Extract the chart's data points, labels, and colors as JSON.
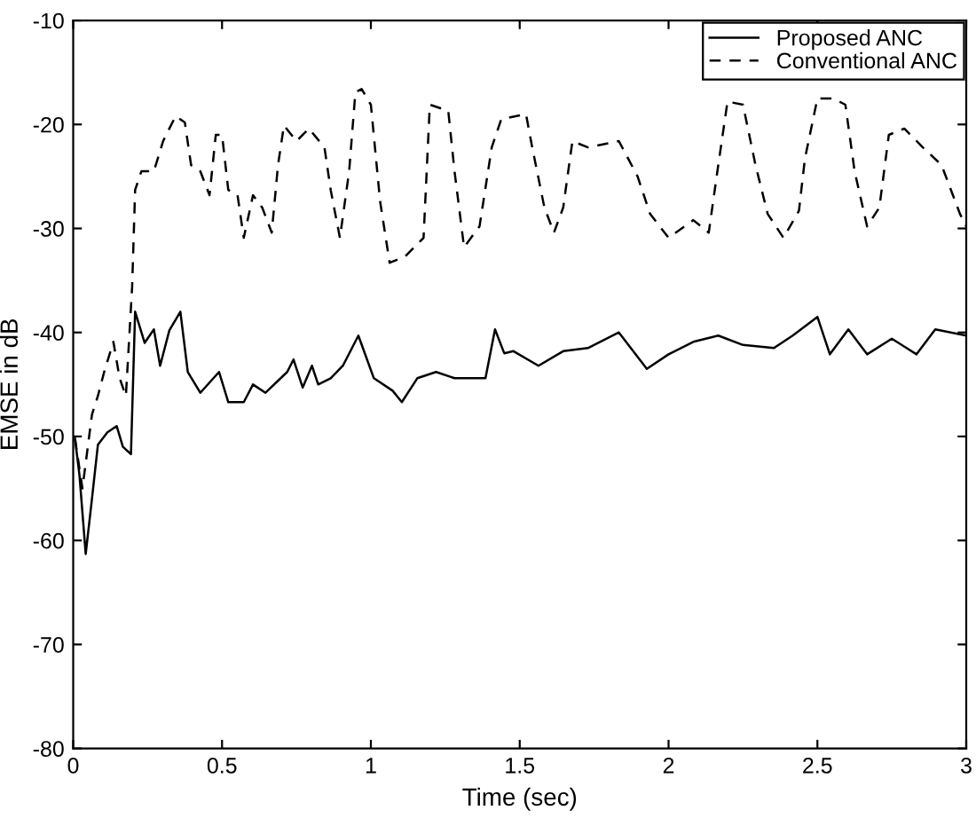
{
  "chart_data": {
    "type": "line",
    "xlabel": "Time (sec)",
    "ylabel": "EMSE in dB",
    "xlim": [
      0,
      3
    ],
    "ylim": [
      -80,
      -10
    ],
    "xticks": [
      0,
      0.5,
      1,
      1.5,
      2,
      2.5,
      3
    ],
    "yticks": [
      -80,
      -70,
      -60,
      -50,
      -40,
      -30,
      -20,
      -10
    ],
    "grid": false,
    "legend": "top right",
    "marker": "none",
    "series": [
      {
        "name": "Proposed ANC",
        "color": "#000000",
        "line_style": "solid",
        "x": [
          0.006,
          0.021,
          0.042,
          0.063,
          0.083,
          0.115,
          0.146,
          0.167,
          0.194,
          0.208,
          0.24,
          0.271,
          0.292,
          0.323,
          0.36,
          0.385,
          0.427,
          0.49,
          0.521,
          0.573,
          0.604,
          0.646,
          0.719,
          0.74,
          0.771,
          0.802,
          0.823,
          0.865,
          0.906,
          0.958,
          1.01,
          1.073,
          1.104,
          1.156,
          1.219,
          1.281,
          1.323,
          1.385,
          1.417,
          1.448,
          1.479,
          1.563,
          1.646,
          1.729,
          1.833,
          1.927,
          2.0,
          2.083,
          2.167,
          2.25,
          2.354,
          2.417,
          2.5,
          2.542,
          2.604,
          2.667,
          2.75,
          2.833,
          2.896,
          3.0
        ],
        "values": [
          -50.2,
          -53.7,
          -61.3,
          -56,
          -50.8,
          -49.6,
          -49,
          -51,
          -51.7,
          -38,
          -41,
          -39.7,
          -43.2,
          -39.8,
          -38,
          -43.8,
          -45.8,
          -43.8,
          -46.7,
          -46.7,
          -45,
          -45.8,
          -43.8,
          -42.6,
          -45.3,
          -43.2,
          -45,
          -44.4,
          -43.2,
          -40.3,
          -44.4,
          -45.6,
          -46.7,
          -44.4,
          -43.8,
          -44.4,
          -44.4,
          -44.4,
          -39.7,
          -42,
          -41.8,
          -43.2,
          -41.8,
          -41.5,
          -40,
          -43.5,
          -42.1,
          -40.9,
          -40.3,
          -41.2,
          -41.5,
          -40.3,
          -38.5,
          -42.1,
          -39.7,
          -42.1,
          -40.6,
          -42.1,
          -39.7,
          -40.3
        ]
      },
      {
        "name": "Conventional ANC",
        "color": "#000000",
        "line_style": "dashed",
        "x": [
          0.006,
          0.031,
          0.063,
          0.083,
          0.104,
          0.135,
          0.156,
          0.177,
          0.198,
          0.208,
          0.229,
          0.271,
          0.302,
          0.344,
          0.375,
          0.396,
          0.427,
          0.458,
          0.479,
          0.5,
          0.521,
          0.552,
          0.573,
          0.604,
          0.635,
          0.667,
          0.688,
          0.708,
          0.75,
          0.792,
          0.844,
          0.865,
          0.896,
          0.927,
          0.948,
          0.969,
          1.0,
          1.031,
          1.063,
          1.115,
          1.177,
          1.198,
          1.26,
          1.281,
          1.313,
          1.365,
          1.406,
          1.438,
          1.521,
          1.542,
          1.583,
          1.615,
          1.646,
          1.677,
          1.729,
          1.833,
          1.896,
          1.938,
          2.0,
          2.083,
          2.135,
          2.167,
          2.198,
          2.25,
          2.292,
          2.333,
          2.386,
          2.438,
          2.458,
          2.5,
          2.552,
          2.594,
          2.625,
          2.667,
          2.708,
          2.74,
          2.792,
          2.854,
          2.917,
          2.979,
          3.0
        ],
        "values": [
          -50.2,
          -55,
          -47.9,
          -46.1,
          -43.8,
          -40.9,
          -44.4,
          -46.1,
          -35.6,
          -26.3,
          -24.5,
          -24.5,
          -21.6,
          -19.2,
          -19.8,
          -23.9,
          -24.5,
          -26.8,
          -21,
          -21,
          -26.3,
          -26.8,
          -30.9,
          -26.8,
          -28,
          -30.4,
          -23.9,
          -20.1,
          -21.6,
          -20.4,
          -22.2,
          -26.3,
          -30.9,
          -24.5,
          -16.9,
          -16.6,
          -18.1,
          -27.4,
          -33.3,
          -32.7,
          -30.9,
          -18.1,
          -18.7,
          -24.5,
          -31.8,
          -29.8,
          -22.2,
          -19.5,
          -19,
          -22.2,
          -28,
          -30.4,
          -28,
          -21.6,
          -22.2,
          -21.6,
          -25,
          -28.6,
          -30.9,
          -29.2,
          -30.4,
          -23.9,
          -17.8,
          -18.1,
          -23.9,
          -28.6,
          -30.9,
          -28.3,
          -23.3,
          -17.5,
          -17.5,
          -18.1,
          -24.5,
          -29.8,
          -28,
          -21,
          -20.4,
          -22.2,
          -23.9,
          -28.6,
          -29.8
        ]
      }
    ]
  }
}
